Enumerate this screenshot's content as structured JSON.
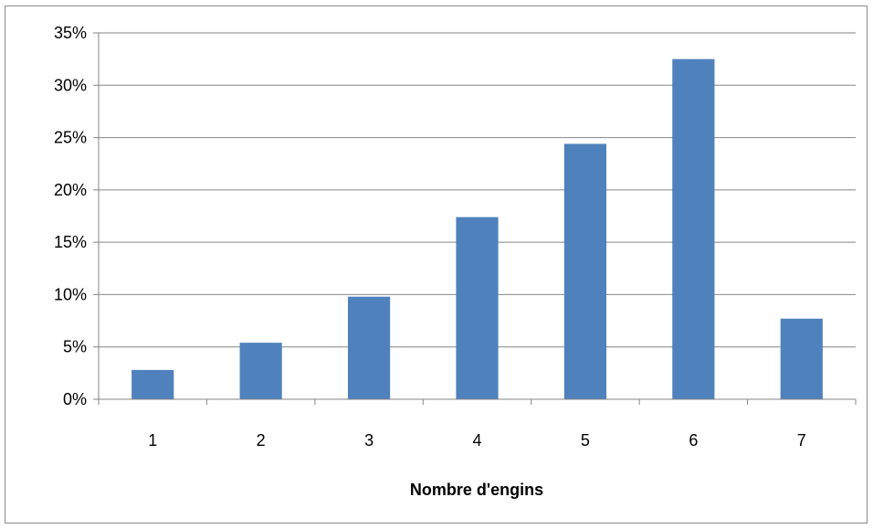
{
  "chart_data": {
    "type": "bar",
    "title": "",
    "xlabel": "Nombre d'engins",
    "ylabel": "",
    "categories": [
      "1",
      "2",
      "3",
      "4",
      "5",
      "6",
      "7"
    ],
    "values": [
      0.028,
      0.054,
      0.098,
      0.174,
      0.244,
      0.325,
      0.077
    ],
    "ylim": [
      0,
      0.35
    ],
    "yticks": [
      "0%",
      "5%",
      "10%",
      "15%",
      "20%",
      "25%",
      "30%",
      "35%"
    ],
    "grid": true,
    "legend": "none",
    "bar_color": "#4f81bd"
  }
}
